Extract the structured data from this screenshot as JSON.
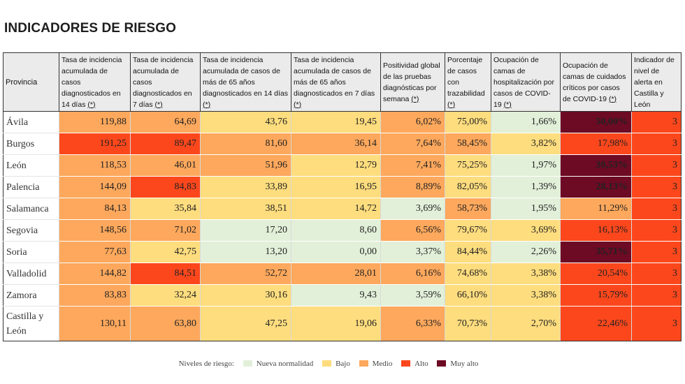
{
  "title": "INDICADORES DE RIESGO",
  "columns": [
    {
      "label": "Provincia",
      "note": ""
    },
    {
      "label": "Tasa de incidencia acumulada de casos diagnosticados en 14 días",
      "note": "(*)"
    },
    {
      "label": "Tasa de incidencia acumulada de casos diagnosticados en 7 días",
      "note": "(*)"
    },
    {
      "label": "Tasa de incidencia acumulada de casos de más de 65 años diagnosticados en 14 días",
      "note": "(*)"
    },
    {
      "label": "Tasa de incidencia acumulada de casos de más de 65 años diagnosticados en 7 días",
      "note": "(*)"
    },
    {
      "label": "Positividad global de las pruebas diagnósticas por semana",
      "note": "(*)"
    },
    {
      "label": "Porcentaje de casos con trazabilidad",
      "note": "(*)"
    },
    {
      "label": "Ocupación de camas de hospitalización por casos de COVID-19",
      "note": "(*)"
    },
    {
      "label": "Ocupación de camas de cuidados críticos por casos de COVID-19",
      "note": "(*)"
    },
    {
      "label": "Indicador de nivel de alerta en Castilla y León",
      "note": ""
    }
  ],
  "rows": [
    {
      "province": "Ávila",
      "values": [
        "119,88",
        "64,69",
        "43,76",
        "19,45",
        "6,02%",
        "75,00%",
        "1,66%",
        "50,00%",
        "3"
      ],
      "levels": [
        "medio",
        "medio",
        "bajo",
        "bajo",
        "medio",
        "bajo",
        "nueva",
        "muyalto",
        "alto"
      ]
    },
    {
      "province": "Burgos",
      "values": [
        "191,25",
        "89,47",
        "81,60",
        "36,14",
        "7,64%",
        "58,45%",
        "3,82%",
        "17,98%",
        "3"
      ],
      "levels": [
        "alto",
        "alto",
        "medio",
        "medio",
        "medio",
        "medio",
        "bajo",
        "alto",
        "alto"
      ]
    },
    {
      "province": "León",
      "values": [
        "118,53",
        "46,01",
        "51,96",
        "12,79",
        "7,41%",
        "75,25%",
        "1,97%",
        "30,53%",
        "3"
      ],
      "levels": [
        "medio",
        "medio",
        "medio",
        "bajo",
        "medio",
        "bajo",
        "nueva",
        "muyalto",
        "alto"
      ]
    },
    {
      "province": "Palencia",
      "values": [
        "144,09",
        "84,83",
        "33,89",
        "16,95",
        "8,89%",
        "82,05%",
        "1,39%",
        "28,13%",
        "3"
      ],
      "levels": [
        "medio",
        "alto",
        "bajo",
        "bajo",
        "medio",
        "bajo",
        "nueva",
        "muyalto",
        "alto"
      ]
    },
    {
      "province": "Salamanca",
      "values": [
        "84,13",
        "35,84",
        "38,51",
        "14,72",
        "3,69%",
        "58,73%",
        "1,95%",
        "11,29%",
        "3"
      ],
      "levels": [
        "medio",
        "bajo",
        "bajo",
        "bajo",
        "nueva",
        "medio",
        "nueva",
        "medio",
        "alto"
      ]
    },
    {
      "province": "Segovia",
      "values": [
        "148,56",
        "71,02",
        "17,20",
        "8,60",
        "6,56%",
        "79,67%",
        "3,69%",
        "16,13%",
        "3"
      ],
      "levels": [
        "medio",
        "medio",
        "nueva",
        "nueva",
        "medio",
        "bajo",
        "bajo",
        "alto",
        "alto"
      ]
    },
    {
      "province": "Soria",
      "values": [
        "77,63",
        "42,75",
        "13,20",
        "0,00",
        "3,37%",
        "84,44%",
        "2,26%",
        "35,71%",
        "3"
      ],
      "levels": [
        "medio",
        "bajo",
        "nueva",
        "nueva",
        "nueva",
        "bajo",
        "nueva",
        "muyalto",
        "alto"
      ]
    },
    {
      "province": "Valladolid",
      "values": [
        "144,82",
        "84,51",
        "52,72",
        "28,01",
        "6,16%",
        "74,68%",
        "3,38%",
        "20,54%",
        "3"
      ],
      "levels": [
        "medio",
        "alto",
        "medio",
        "medio",
        "medio",
        "bajo",
        "bajo",
        "alto",
        "alto"
      ]
    },
    {
      "province": "Zamora",
      "values": [
        "83,83",
        "32,24",
        "30,16",
        "9,43",
        "3,59%",
        "66,10%",
        "3,38%",
        "15,79%",
        "3"
      ],
      "levels": [
        "medio",
        "bajo",
        "bajo",
        "nueva",
        "nueva",
        "bajo",
        "bajo",
        "alto",
        "alto"
      ]
    },
    {
      "province": "Castilla y León",
      "values": [
        "130,11",
        "63,80",
        "47,25",
        "19,06",
        "6,33%",
        "70,73%",
        "2,70%",
        "22,46%",
        "3"
      ],
      "levels": [
        "medio",
        "medio",
        "bajo",
        "bajo",
        "medio",
        "bajo",
        "bajo",
        "alto",
        "alto"
      ]
    }
  ],
  "legend": {
    "label": "Niveles de riesgo:",
    "items": [
      {
        "key": "nueva",
        "label": "Nueva normalidad",
        "color": "#e2f0d9"
      },
      {
        "key": "bajo",
        "label": "Bajo",
        "color": "#fedd7e"
      },
      {
        "key": "medio",
        "label": "Medio",
        "color": "#fda85c"
      },
      {
        "key": "alto",
        "label": "Alto",
        "color": "#fc471c"
      },
      {
        "key": "muyalto",
        "label": "Muy alto",
        "color": "#6d0a24"
      }
    ]
  }
}
